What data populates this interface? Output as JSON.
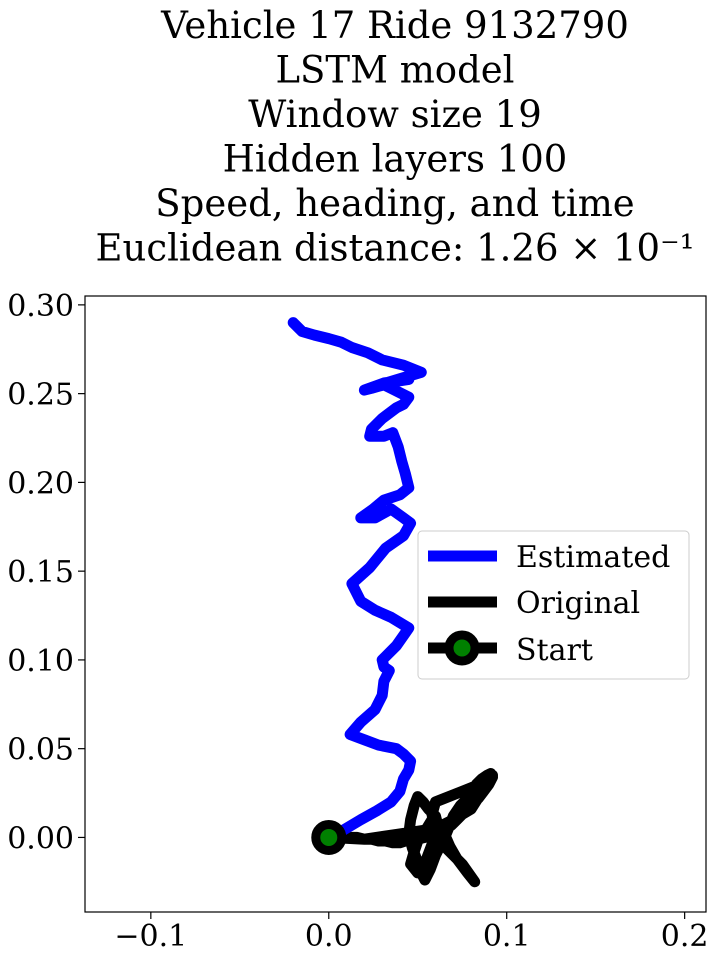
{
  "chart_data": {
    "type": "line",
    "title_lines": [
      "Vehicle 17 Ride 9132790",
      "LSTM model",
      "Window size 19",
      "Hidden layers 100",
      "Speed, heading, and time",
      "Euclidean distance: 1.26 × 10⁻¹"
    ],
    "xlabel": "",
    "ylabel": "",
    "xlim": [
      -0.137,
      0.212
    ],
    "ylim": [
      -0.042,
      0.305
    ],
    "xticks": [
      {
        "value": -0.1,
        "label": "−0.1"
      },
      {
        "value": 0.0,
        "label": "0.0"
      },
      {
        "value": 0.1,
        "label": "0.1"
      },
      {
        "value": 0.2,
        "label": "0.2"
      }
    ],
    "yticks": [
      {
        "value": 0.0,
        "label": "0.00"
      },
      {
        "value": 0.05,
        "label": "0.05"
      },
      {
        "value": 0.1,
        "label": "0.10"
      },
      {
        "value": 0.15,
        "label": "0.15"
      },
      {
        "value": 0.2,
        "label": "0.20"
      },
      {
        "value": 0.25,
        "label": "0.25"
      },
      {
        "value": 0.3,
        "label": "0.30"
      }
    ],
    "grid": false,
    "legend_position": "center-right",
    "series": [
      {
        "name": "Estimated",
        "color": "#0000ff",
        "x": [
          0.0,
          0.008,
          0.018,
          0.027,
          0.035,
          0.04,
          0.042,
          0.045,
          0.046,
          0.042,
          0.038,
          0.028,
          0.02,
          0.012,
          0.018,
          0.026,
          0.03,
          0.031,
          0.034,
          0.031,
          0.03,
          0.038,
          0.045,
          0.035,
          0.026,
          0.018,
          0.013,
          0.023,
          0.032,
          0.042,
          0.046,
          0.042,
          0.035,
          0.026,
          0.018,
          0.025,
          0.031,
          0.04,
          0.045,
          0.043,
          0.041,
          0.039,
          0.036,
          0.031,
          0.023,
          0.024,
          0.03,
          0.038,
          0.042,
          0.045,
          0.035,
          0.031,
          0.024,
          0.02,
          0.031,
          0.045,
          0.032,
          0.052,
          0.042,
          0.03,
          0.022,
          0.013,
          0.007,
          0.0,
          -0.008,
          -0.015,
          -0.02
        ],
        "y": [
          0.0,
          0.004,
          0.01,
          0.015,
          0.02,
          0.026,
          0.033,
          0.038,
          0.043,
          0.047,
          0.05,
          0.052,
          0.055,
          0.058,
          0.065,
          0.072,
          0.08,
          0.088,
          0.094,
          0.096,
          0.1,
          0.108,
          0.118,
          0.124,
          0.128,
          0.133,
          0.143,
          0.152,
          0.163,
          0.17,
          0.177,
          0.18,
          0.185,
          0.18,
          0.18,
          0.185,
          0.19,
          0.193,
          0.197,
          0.205,
          0.212,
          0.22,
          0.228,
          0.226,
          0.226,
          0.23,
          0.236,
          0.242,
          0.244,
          0.248,
          0.253,
          0.255,
          0.253,
          0.252,
          0.256,
          0.258,
          0.256,
          0.262,
          0.266,
          0.269,
          0.273,
          0.276,
          0.279,
          0.281,
          0.283,
          0.285,
          0.29
        ]
      },
      {
        "name": "Original",
        "color": "#000000",
        "x": [
          0.0,
          0.02,
          0.04,
          0.06,
          0.07,
          0.08,
          0.092,
          0.085,
          0.075,
          0.065,
          0.06,
          0.058,
          0.06,
          0.065,
          0.075,
          0.082,
          0.078,
          0.072,
          0.068,
          0.065,
          0.06,
          0.058,
          0.055,
          0.05,
          0.048,
          0.046,
          0.05,
          0.055,
          0.058,
          0.062,
          0.06,
          0.056,
          0.053,
          0.05,
          0.048,
          0.046,
          0.045,
          0.047,
          0.05,
          0.052,
          0.054,
          0.057,
          0.06,
          0.063,
          0.066,
          0.068,
          0.07,
          0.074,
          0.078,
          0.081,
          0.083,
          0.086,
          0.089,
          0.091,
          0.092,
          0.09,
          0.087,
          0.084,
          0.081,
          0.078,
          0.075,
          0.072,
          0.069,
          0.066,
          0.062,
          0.058,
          0.054,
          0.05,
          0.046,
          0.043,
          0.04,
          0.036,
          0.032,
          0.028,
          0.024,
          0.02,
          0.016,
          0.012,
          0.008,
          0.005,
          0.002,
          0.0
        ],
        "y": [
          0.0,
          -0.001,
          0.002,
          0.005,
          0.01,
          0.016,
          0.035,
          0.03,
          0.026,
          0.022,
          0.02,
          0.013,
          0.005,
          -0.005,
          -0.015,
          -0.025,
          -0.02,
          -0.012,
          -0.005,
          0.002,
          0.008,
          0.01,
          0.005,
          -0.002,
          -0.008,
          -0.015,
          -0.02,
          -0.012,
          -0.004,
          0.004,
          0.012,
          0.016,
          0.02,
          0.023,
          0.018,
          0.01,
          0.002,
          -0.006,
          -0.014,
          -0.02,
          -0.024,
          -0.018,
          -0.01,
          -0.004,
          0.002,
          0.007,
          0.012,
          0.018,
          0.022,
          0.026,
          0.03,
          0.033,
          0.035,
          0.036,
          0.034,
          0.03,
          0.026,
          0.022,
          0.019,
          0.016,
          0.013,
          0.01,
          0.007,
          0.005,
          0.003,
          0.001,
          0.0,
          -0.001,
          -0.002,
          -0.002,
          -0.003,
          -0.003,
          -0.002,
          -0.002,
          -0.001,
          -0.001,
          0.0,
          0.0,
          0.0,
          0.0,
          0.0,
          0.0
        ]
      }
    ],
    "start_marker": {
      "name": "Start",
      "x": 0.0,
      "y": 0.0,
      "face_color": "#008000",
      "edge_color": "#000000"
    }
  }
}
